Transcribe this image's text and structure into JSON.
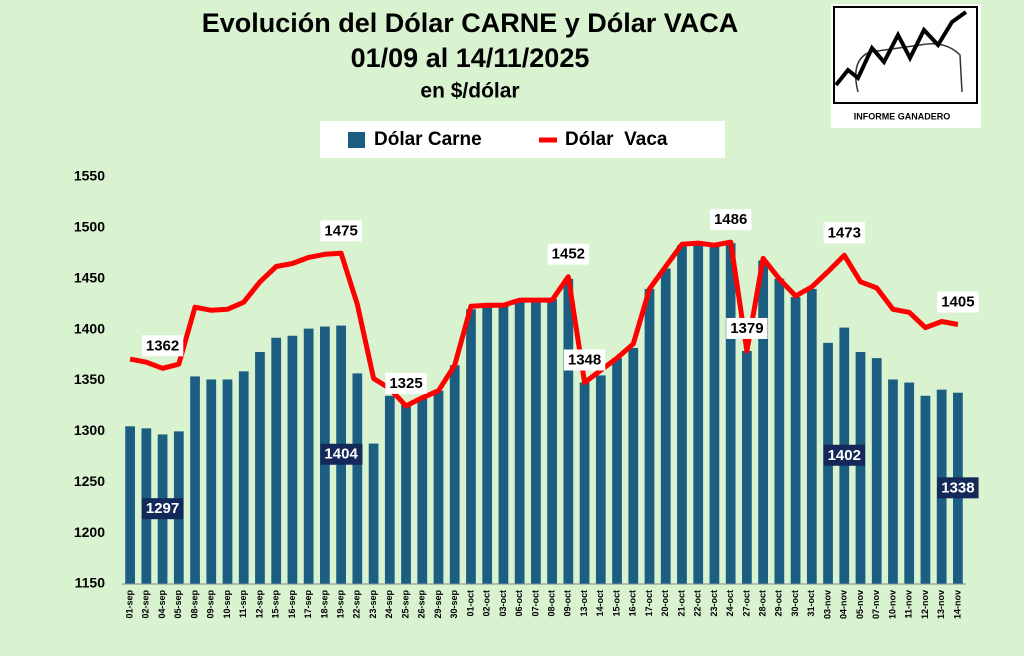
{
  "chart_data": {
    "type": "bar-line",
    "title": "Evolución del Dólar CARNE y Dólar VACA",
    "subtitle": "01/09 al 14/11/2025",
    "unit_label": "en $/dólar",
    "logo_text": "INFORME GANADERO",
    "categories": [
      "01-sep",
      "02-sep",
      "04-sep",
      "05-sep",
      "08-sep",
      "09-sep",
      "10-sep",
      "11-sep",
      "12-sep",
      "15-sep",
      "16-sep",
      "17-sep",
      "18-sep",
      "19-sep",
      "22-sep",
      "23-sep",
      "24-sep",
      "25-sep",
      "26-sep",
      "29-sep",
      "30-sep",
      "01-oct",
      "02-oct",
      "03-oct",
      "06-oct",
      "07-oct",
      "08-oct",
      "09-oct",
      "13-oct",
      "14-oct",
      "15-oct",
      "16-oct",
      "17-oct",
      "20-oct",
      "21-oct",
      "22-oct",
      "23-oct",
      "24-oct",
      "27-oct",
      "28-oct",
      "29-oct",
      "30-oct",
      "31-oct",
      "03-nov",
      "04-nov",
      "05-nov",
      "07-nov",
      "10-nov",
      "11-nov",
      "12-nov",
      "13-nov",
      "14-nov"
    ],
    "series": [
      {
        "name": "Dólar Carne",
        "type": "bar",
        "color": "#1b5e82",
        "values": [
          1305,
          1303,
          1297,
          1300,
          1354,
          1351,
          1351,
          1359,
          1378,
          1392,
          1394,
          1401,
          1403,
          1404,
          1357,
          1288,
          1335,
          1328,
          1333,
          1340,
          1365,
          1420,
          1422,
          1423,
          1428,
          1430,
          1430,
          1450,
          1348,
          1355,
          1372,
          1382,
          1440,
          1460,
          1483,
          1485,
          1483,
          1485,
          1379,
          1468,
          1450,
          1432,
          1440,
          1387,
          1402,
          1378,
          1372,
          1351,
          1348,
          1335,
          1341,
          1338
        ],
        "value_labels": [
          null,
          null,
          "1297",
          null,
          null,
          null,
          null,
          null,
          null,
          null,
          null,
          null,
          null,
          "1404",
          null,
          null,
          null,
          null,
          null,
          null,
          null,
          null,
          null,
          null,
          null,
          null,
          null,
          null,
          null,
          null,
          null,
          null,
          null,
          null,
          null,
          null,
          null,
          null,
          null,
          null,
          null,
          null,
          null,
          null,
          "1402",
          null,
          null,
          null,
          null,
          null,
          null,
          "1338"
        ]
      },
      {
        "name": "Dólar  Vaca",
        "type": "line",
        "color": "#ff0000",
        "values": [
          1371,
          1368,
          1362,
          1366,
          1422,
          1419,
          1420,
          1427,
          1447,
          1462,
          1465,
          1471,
          1474,
          1475,
          1425,
          1352,
          1342,
          1325,
          1333,
          1340,
          1365,
          1423,
          1424,
          1424,
          1429,
          1429,
          1429,
          1452,
          1348,
          1360,
          1372,
          1386,
          1440,
          1462,
          1484,
          1485,
          1483,
          1486,
          1379,
          1470,
          1450,
          1433,
          1442,
          1457,
          1473,
          1447,
          1441,
          1420,
          1417,
          1402,
          1408,
          1405
        ],
        "value_labels": [
          null,
          null,
          "1362",
          null,
          null,
          null,
          null,
          null,
          null,
          null,
          null,
          null,
          null,
          "1475",
          null,
          null,
          null,
          "1325",
          null,
          null,
          null,
          null,
          null,
          null,
          null,
          null,
          null,
          "1452",
          "1348",
          null,
          null,
          null,
          null,
          null,
          null,
          null,
          null,
          "1486",
          "1379",
          null,
          null,
          null,
          null,
          null,
          "1473",
          null,
          null,
          null,
          null,
          null,
          null,
          "1405"
        ]
      }
    ],
    "ylim": [
      1150,
      1550
    ],
    "yticks": [
      1150,
      1200,
      1250,
      1300,
      1350,
      1400,
      1450,
      1500,
      1550
    ],
    "grid": false
  }
}
